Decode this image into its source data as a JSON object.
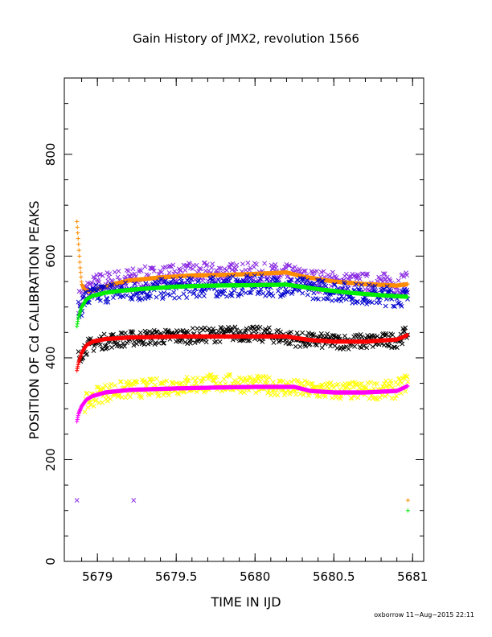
{
  "chart_data": {
    "type": "scatter",
    "title": "Gain History of JMX2, revolution 1566",
    "xlabel": "TIME IN IJD",
    "ylabel": "POSITION OF Cd CALIBRATION PEAKS",
    "footer": "oxborrow 11−Aug−2015 22:11",
    "xlim": [
      5678.79,
      5681.07
    ],
    "ylim": [
      0,
      950
    ],
    "x_ticks": [
      5679,
      5679.5,
      5680,
      5680.5,
      5681
    ],
    "x_tick_labels": [
      "5679",
      "5679.5",
      "5680",
      "5680.5",
      "5681"
    ],
    "y_ticks": [
      0,
      200,
      400,
      600,
      800
    ],
    "y_tick_labels": [
      "0",
      "200",
      "400",
      "600",
      "800"
    ],
    "grid": false,
    "legend": "none",
    "series": [
      {
        "color": "#8a2be2",
        "marker": "x",
        "scatter": 22,
        "x": [
          5678.88,
          5678.92,
          5679.0,
          5679.1,
          5679.2,
          5679.4,
          5679.6,
          5679.8,
          5680.0,
          5680.2,
          5680.3,
          5680.5,
          5680.7,
          5680.9,
          5680.97
        ],
        "values": [
          510,
          530,
          545,
          550,
          555,
          560,
          565,
          565,
          565,
          562,
          555,
          548,
          545,
          545,
          550
        ]
      },
      {
        "color": "#ff8c00",
        "marker": "+",
        "scatter": 0,
        "x": [
          5678.87,
          5678.88,
          5678.89,
          5678.9,
          5678.92,
          5678.95,
          5679.0,
          5679.1,
          5679.2,
          5679.3,
          5679.4,
          5679.5,
          5679.6,
          5679.8,
          5680.0,
          5680.2,
          5680.3,
          5680.5,
          5680.7,
          5680.9,
          5680.97
        ],
        "values": [
          668,
          625,
          580,
          545,
          533,
          531,
          535,
          545,
          552,
          555,
          558,
          560,
          562,
          563,
          565,
          568,
          560,
          550,
          545,
          542,
          545
        ]
      },
      {
        "color": "#0000cd",
        "marker": "x",
        "scatter": 20,
        "x": [
          5678.88,
          5678.92,
          5679.0,
          5679.1,
          5679.2,
          5679.4,
          5679.6,
          5679.8,
          5680.0,
          5680.2,
          5680.4,
          5680.6,
          5680.8,
          5680.97
        ],
        "values": [
          490,
          515,
          525,
          530,
          530,
          535,
          538,
          540,
          542,
          540,
          535,
          528,
          522,
          520
        ]
      },
      {
        "color": "#00ee00",
        "marker": "+",
        "scatter": 0,
        "x": [
          5678.87,
          5678.88,
          5678.9,
          5678.93,
          5678.97,
          5679.05,
          5679.15,
          5679.3,
          5679.5,
          5679.7,
          5680.0,
          5680.2,
          5680.4,
          5680.6,
          5680.8,
          5680.97
        ],
        "values": [
          462,
          480,
          500,
          515,
          522,
          528,
          532,
          536,
          540,
          542,
          543,
          544,
          535,
          528,
          523,
          520
        ]
      },
      {
        "color": "#000000",
        "marker": "x",
        "scatter": 15,
        "x": [
          5678.88,
          5678.92,
          5679.0,
          5679.1,
          5679.3,
          5679.5,
          5679.7,
          5679.9,
          5680.1,
          5680.3,
          5680.5,
          5680.7,
          5680.9,
          5680.97
        ],
        "values": [
          400,
          420,
          430,
          435,
          440,
          442,
          445,
          448,
          445,
          435,
          432,
          432,
          435,
          450
        ]
      },
      {
        "color": "#ff0000",
        "marker": "+",
        "scatter": 0,
        "x": [
          5678.87,
          5678.88,
          5678.9,
          5678.93,
          5678.97,
          5679.05,
          5679.2,
          5679.5,
          5679.8,
          5680.0,
          5680.2,
          5680.35,
          5680.5,
          5680.7,
          5680.9,
          5680.97
        ],
        "values": [
          375,
          390,
          410,
          425,
          432,
          437,
          440,
          442,
          442,
          442,
          442,
          435,
          432,
          432,
          436,
          445
        ]
      },
      {
        "color": "#ffff00",
        "marker": "x",
        "scatter": 18,
        "x": [
          5678.92,
          5678.97,
          5679.0,
          5679.1,
          5679.3,
          5679.5,
          5679.7,
          5679.9,
          5680.1,
          5680.3,
          5680.5,
          5680.7,
          5680.9,
          5680.97
        ],
        "values": [
          310,
          320,
          328,
          335,
          340,
          345,
          350,
          350,
          345,
          338,
          335,
          335,
          338,
          355
        ]
      },
      {
        "color": "#ff00ff",
        "marker": "+",
        "scatter": 0,
        "x": [
          5678.87,
          5678.88,
          5678.9,
          5678.93,
          5678.97,
          5679.05,
          5679.2,
          5679.5,
          5679.8,
          5680.0,
          5680.25,
          5680.35,
          5680.5,
          5680.7,
          5680.9,
          5680.97
        ],
        "values": [
          275,
          290,
          305,
          318,
          325,
          332,
          337,
          340,
          342,
          343,
          343,
          335,
          332,
          332,
          335,
          345
        ]
      }
    ],
    "outliers": [
      {
        "x": 5678.87,
        "y": 120,
        "color": "#8a2be2",
        "marker": "x"
      },
      {
        "x": 5679.23,
        "y": 120,
        "color": "#8a2be2",
        "marker": "x"
      },
      {
        "x": 5680.97,
        "y": 120,
        "color": "#ff8c00",
        "marker": "+"
      },
      {
        "x": 5680.97,
        "y": 100,
        "color": "#00ee00",
        "marker": "+"
      }
    ]
  }
}
